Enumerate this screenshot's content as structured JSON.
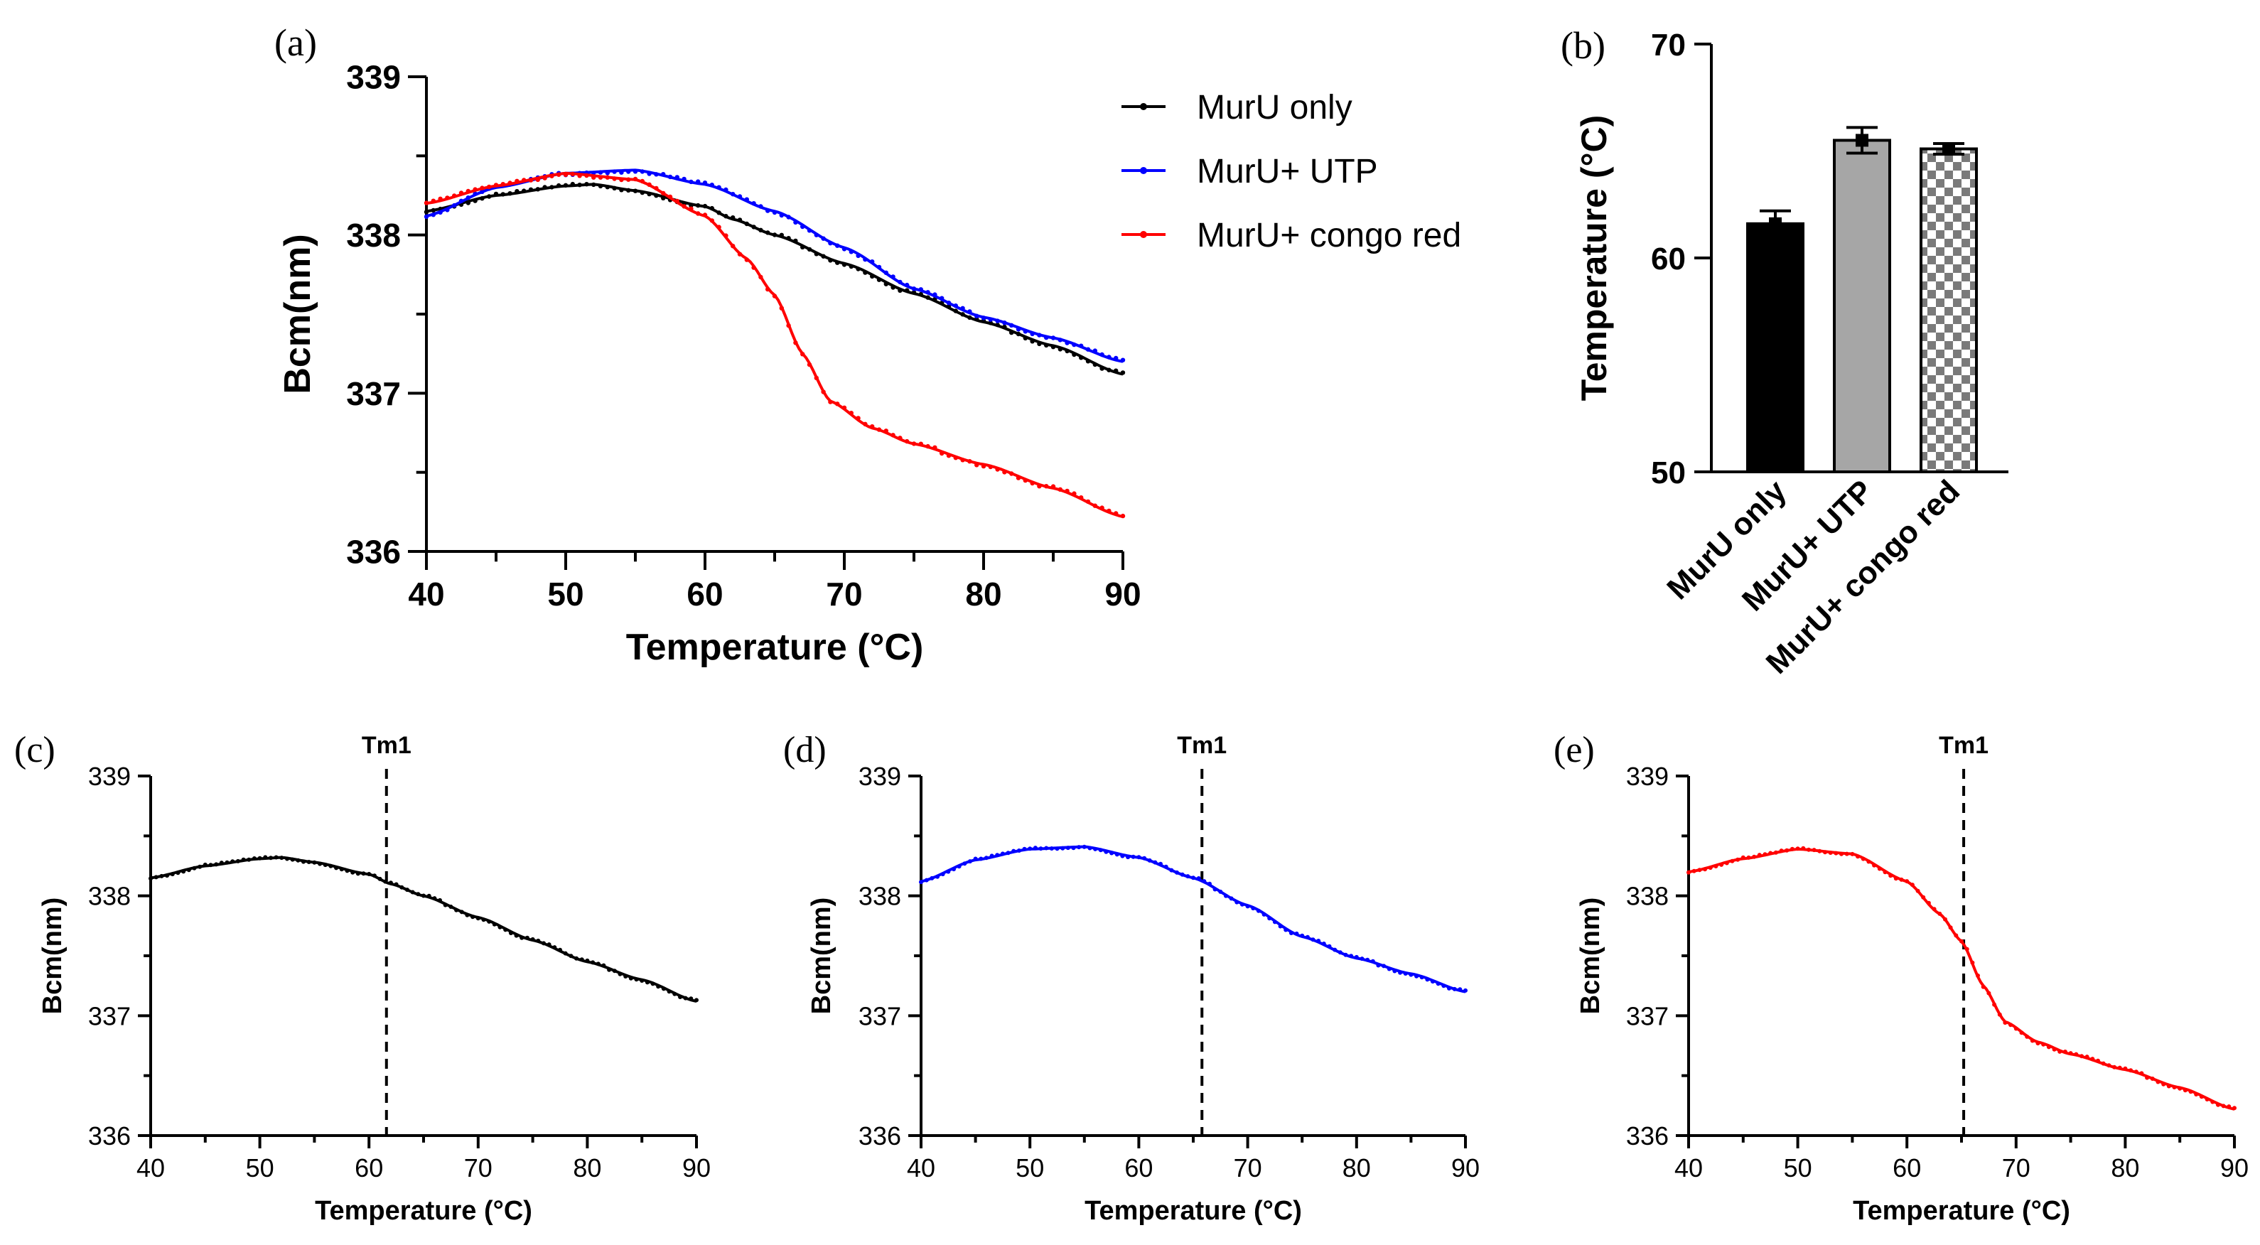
{
  "colors": {
    "murU_only": "#000000",
    "murU_utp": "#0000ff",
    "murU_congo": "#ff0000",
    "bar_utp": "#a6a6a6"
  },
  "chart_data": [
    {
      "id": "a",
      "panel_label": "(a)",
      "type": "line",
      "title": "",
      "xlabel": "Temperature (°C)",
      "ylabel": "Bcm(nm)",
      "xlim": [
        40,
        90
      ],
      "ylim": [
        336,
        339
      ],
      "xticks": [
        "40",
        "50",
        "60",
        "70",
        "80",
        "90"
      ],
      "yticks": [
        "336",
        "337",
        "338",
        "339"
      ],
      "legend_position": "top-right",
      "series": [
        {
          "name": "MurU only",
          "color": "#000000",
          "points": [
            [
              40,
              338.15
            ],
            [
              45,
              338.25
            ],
            [
              50,
              338.31
            ],
            [
              52,
              338.32
            ],
            [
              55,
              338.28
            ],
            [
              60,
              338.18
            ],
            [
              62,
              338.1
            ],
            [
              65,
              338.0
            ],
            [
              70,
              337.82
            ],
            [
              75,
              337.63
            ],
            [
              80,
              337.45
            ],
            [
              85,
              337.3
            ],
            [
              90,
              337.12
            ]
          ]
        },
        {
          "name": "MurU+ UTP",
          "color": "#0000ff",
          "points": [
            [
              40,
              338.12
            ],
            [
              45,
              338.3
            ],
            [
              50,
              338.39
            ],
            [
              55,
              338.41
            ],
            [
              60,
              338.32
            ],
            [
              65,
              338.15
            ],
            [
              70,
              337.92
            ],
            [
              75,
              337.66
            ],
            [
              80,
              337.48
            ],
            [
              85,
              337.35
            ],
            [
              90,
              337.2
            ]
          ]
        },
        {
          "name": "MurU+ congo red",
          "color": "#ff0000",
          "points": [
            [
              40,
              338.2
            ],
            [
              45,
              338.31
            ],
            [
              50,
              338.39
            ],
            [
              55,
              338.35
            ],
            [
              60,
              338.12
            ],
            [
              63,
              337.85
            ],
            [
              65,
              337.62
            ],
            [
              67,
              337.25
            ],
            [
              69,
              336.95
            ],
            [
              72,
              336.78
            ],
            [
              75,
              336.68
            ],
            [
              80,
              336.55
            ],
            [
              85,
              336.4
            ],
            [
              90,
              336.22
            ]
          ]
        }
      ]
    },
    {
      "id": "b",
      "panel_label": "(b)",
      "type": "bar",
      "ylabel": "Temperature (°C)",
      "ylim": [
        50,
        70
      ],
      "yticks": [
        "50",
        "60",
        "70"
      ],
      "categories": [
        "MurU only",
        "MurU+ UTP",
        "MurU+ congo red"
      ],
      "values": [
        61.6,
        65.5,
        65.1
      ],
      "errors": [
        0.6,
        0.6,
        0.25
      ]
    },
    {
      "id": "c",
      "panel_label": "(c)",
      "type": "line",
      "xlabel": "Temperature (°C)",
      "ylabel": "Bcm(nm)",
      "xlim": [
        40,
        90
      ],
      "ylim": [
        336,
        339
      ],
      "xticks": [
        "40",
        "50",
        "60",
        "70",
        "80",
        "90"
      ],
      "yticks": [
        "336",
        "337",
        "338",
        "339"
      ],
      "tm_label": "Tm1",
      "tm_value": 61.6,
      "series": [
        {
          "name": "MurU only",
          "color": "#000000",
          "points": [
            [
              40,
              338.15
            ],
            [
              45,
              338.25
            ],
            [
              50,
              338.31
            ],
            [
              52,
              338.32
            ],
            [
              55,
              338.28
            ],
            [
              60,
              338.18
            ],
            [
              62,
              338.1
            ],
            [
              65,
              338.0
            ],
            [
              70,
              337.82
            ],
            [
              75,
              337.63
            ],
            [
              80,
              337.45
            ],
            [
              85,
              337.3
            ],
            [
              90,
              337.12
            ]
          ]
        }
      ]
    },
    {
      "id": "d",
      "panel_label": "(d)",
      "type": "line",
      "xlabel": "Temperature (°C)",
      "ylabel": "Bcm(nm)",
      "xlim": [
        40,
        90
      ],
      "ylim": [
        336,
        339
      ],
      "xticks": [
        "40",
        "50",
        "60",
        "70",
        "80",
        "90"
      ],
      "yticks": [
        "336",
        "337",
        "338",
        "339"
      ],
      "tm_label": "Tm1",
      "tm_value": 65.8,
      "series": [
        {
          "name": "MurU+ UTP",
          "color": "#0000ff",
          "points": [
            [
              40,
              338.12
            ],
            [
              45,
              338.3
            ],
            [
              50,
              338.39
            ],
            [
              55,
              338.41
            ],
            [
              60,
              338.32
            ],
            [
              65,
              338.15
            ],
            [
              70,
              337.92
            ],
            [
              75,
              337.66
            ],
            [
              80,
              337.48
            ],
            [
              85,
              337.35
            ],
            [
              90,
              337.2
            ]
          ]
        }
      ]
    },
    {
      "id": "e",
      "panel_label": "(e)",
      "type": "line",
      "xlabel": "Temperature (°C)",
      "ylabel": "Bcm(nm)",
      "xlim": [
        40,
        90
      ],
      "ylim": [
        336,
        339
      ],
      "xticks": [
        "40",
        "50",
        "60",
        "70",
        "80",
        "90"
      ],
      "yticks": [
        "336",
        "337",
        "338",
        "339"
      ],
      "tm_label": "Tm1",
      "tm_value": 65.2,
      "series": [
        {
          "name": "MurU+ congo red",
          "color": "#ff0000",
          "points": [
            [
              40,
              338.2
            ],
            [
              45,
              338.31
            ],
            [
              50,
              338.39
            ],
            [
              55,
              338.35
            ],
            [
              60,
              338.12
            ],
            [
              63,
              337.85
            ],
            [
              65,
              337.62
            ],
            [
              67,
              337.25
            ],
            [
              69,
              336.95
            ],
            [
              72,
              336.78
            ],
            [
              75,
              336.68
            ],
            [
              80,
              336.55
            ],
            [
              85,
              336.4
            ],
            [
              90,
              336.22
            ]
          ]
        }
      ]
    }
  ]
}
